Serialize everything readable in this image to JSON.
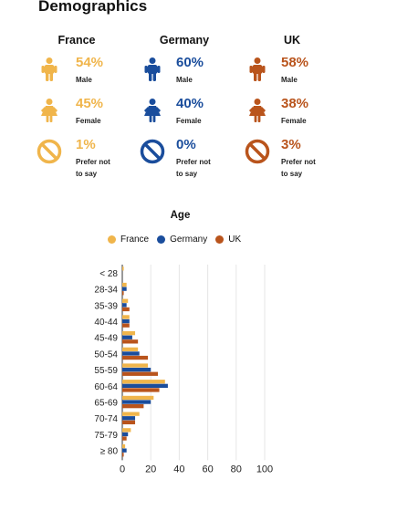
{
  "page_title": "Demographics",
  "colors": {
    "France": "#f0b54b",
    "Germany": "#1a4d9c",
    "UK": "#b9541c"
  },
  "countries": [
    {
      "name": "France",
      "color": "#f0b54b",
      "stats": [
        {
          "value": "54%",
          "label": "Male",
          "icon": "male-icon"
        },
        {
          "value": "45%",
          "label": "Female",
          "icon": "female-icon"
        },
        {
          "value": "1%",
          "label": "Prefer not to say",
          "icon": "prohibited-icon"
        }
      ]
    },
    {
      "name": "Germany",
      "color": "#1a4d9c",
      "stats": [
        {
          "value": "60%",
          "label": "Male",
          "icon": "male-icon"
        },
        {
          "value": "40%",
          "label": "Female",
          "icon": "female-icon"
        },
        {
          "value": "0%",
          "label": "Prefer not to say",
          "icon": "prohibited-icon"
        }
      ]
    },
    {
      "name": "UK",
      "color": "#b9541c",
      "stats": [
        {
          "value": "58%",
          "label": "Male",
          "icon": "male-icon"
        },
        {
          "value": "38%",
          "label": "Female",
          "icon": "female-icon"
        },
        {
          "value": "3%",
          "label": "Prefer not to say",
          "icon": "prohibited-icon"
        }
      ]
    }
  ],
  "chart_data": {
    "type": "bar",
    "orientation": "horizontal",
    "title": "Age",
    "categories": [
      "< 28",
      "28-34",
      "35-39",
      "40-44",
      "45-49",
      "50-54",
      "55-59",
      "60-64",
      "65-69",
      "70-74",
      "75-79",
      "≥ 80"
    ],
    "series": [
      {
        "name": "France",
        "color": "#f0b54b",
        "values": [
          1,
          3,
          4,
          5,
          9,
          11,
          18,
          30,
          22,
          12,
          6,
          2
        ]
      },
      {
        "name": "Germany",
        "color": "#1a4d9c",
        "values": [
          0,
          3,
          3,
          5,
          7,
          12,
          20,
          32,
          20,
          9,
          4,
          3
        ]
      },
      {
        "name": "UK",
        "color": "#b9541c",
        "values": [
          0,
          1,
          5,
          5,
          11,
          18,
          25,
          26,
          15,
          9,
          3,
          1
        ]
      }
    ],
    "xlim": [
      0,
      100
    ],
    "xticks": [
      0,
      20,
      40,
      60,
      80,
      100
    ],
    "grid": true,
    "legend": "top-center"
  }
}
